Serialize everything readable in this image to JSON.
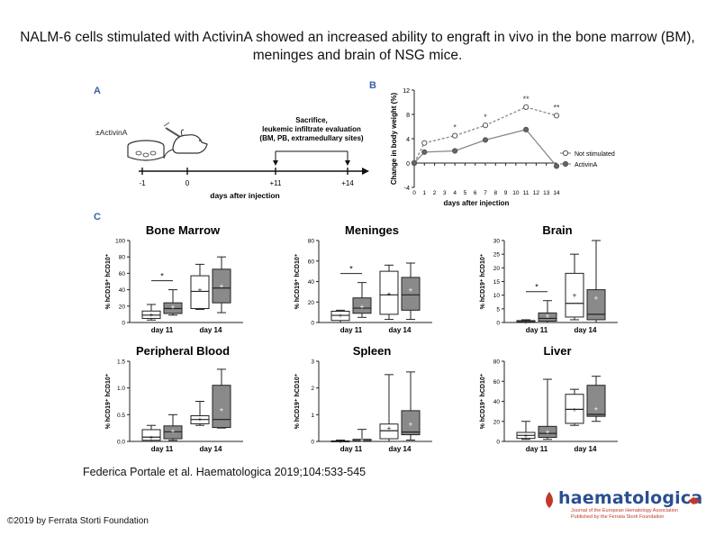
{
  "title": "NALM-6 cells stimulated with ActivinA showed an increased ability to engraft in vivo in the bone marrow (BM), meninges and brain of NSG mice.",
  "citation": "Federica Portale et al. Haematologica 2019;104:533-545",
  "copyright": "©2019 by Ferrata Storti Foundation",
  "logo": {
    "name": "haematologica",
    "subtitle_line1": "Journal of the European Hematology Association",
    "subtitle_line2": "Published by the Ferrata Storti Foundation"
  },
  "panel_a": {
    "label": "A",
    "treatment": "±ActivinA",
    "event": "Sacrifice, leukemic infiltrate evaluation (BM, PB, extramedullary sites)",
    "ticks": [
      "-1",
      "0",
      "+11",
      "+14"
    ],
    "xlabel": "days after injection"
  },
  "panel_c_label": "C",
  "chart_data": [
    {
      "type": "line",
      "panel": "B",
      "ylabel": "Change in body weight (%)",
      "xlabel": "days after injection",
      "x": [
        0,
        1,
        2,
        3,
        4,
        5,
        6,
        7,
        8,
        9,
        10,
        11,
        12,
        13,
        14
      ],
      "xticks": [
        "0",
        "1",
        "2",
        "3",
        "4",
        "5",
        "6",
        "7",
        "8",
        "9",
        "10",
        "11",
        "12",
        "13",
        "14"
      ],
      "ylim": [
        -4,
        12
      ],
      "yticks": [
        -4,
        0,
        4,
        8,
        12
      ],
      "series": [
        {
          "name": "Not stimulated",
          "x": [
            0,
            1,
            4,
            7,
            11,
            14
          ],
          "values": [
            0,
            3.3,
            4.5,
            6.2,
            9.2,
            7.8
          ]
        },
        {
          "name": "ActivinA",
          "x": [
            0,
            1,
            4,
            7,
            11,
            14
          ],
          "values": [
            0,
            1.8,
            2.0,
            3.8,
            5.5,
            -0.5
          ]
        }
      ],
      "annotations": [
        {
          "x": 4,
          "text": "*"
        },
        {
          "x": 7,
          "text": "*"
        },
        {
          "x": 11,
          "text": "**"
        },
        {
          "x": 14,
          "text": "**"
        }
      ],
      "legend_position": "right"
    },
    {
      "type": "box",
      "panel": "C",
      "title": "Bone Marrow",
      "ylabel": "% hCD19⁺ hCD10⁺",
      "ylim": [
        0,
        100
      ],
      "yticks": [
        "0",
        "20",
        "40",
        "60",
        "80",
        "100"
      ],
      "categories": [
        "day 11",
        "day 14"
      ],
      "boxes": [
        {
          "group": "day 11",
          "fill": "white",
          "min": 3,
          "q1": 5,
          "median": 9,
          "q3": 14,
          "max": 22,
          "mean": 10
        },
        {
          "group": "day 11",
          "fill": "gray",
          "min": 9,
          "q1": 11,
          "median": 17,
          "q3": 24,
          "max": 40,
          "mean": 19
        },
        {
          "group": "day 14",
          "fill": "white",
          "min": 16,
          "q1": 17,
          "median": 38,
          "q3": 57,
          "max": 71,
          "mean": 40
        },
        {
          "group": "day 14",
          "fill": "gray",
          "min": 12,
          "q1": 24,
          "median": 42,
          "q3": 65,
          "max": 80,
          "mean": 45
        }
      ],
      "significance": "*"
    },
    {
      "type": "box",
      "panel": "C",
      "title": "Meninges",
      "ylabel": "% hCD19⁺ hCD10⁺",
      "ylim": [
        0,
        80
      ],
      "yticks": [
        "0",
        "20",
        "40",
        "60",
        "80"
      ],
      "categories": [
        "day 11",
        "day 14"
      ],
      "boxes": [
        {
          "group": "day 11",
          "fill": "white",
          "min": 0,
          "q1": 2,
          "median": 7,
          "q3": 11,
          "max": 12,
          "mean": 7
        },
        {
          "group": "day 11",
          "fill": "gray",
          "min": 5,
          "q1": 9,
          "median": 14,
          "q3": 24,
          "max": 39,
          "mean": 16
        },
        {
          "group": "day 14",
          "fill": "white",
          "min": 3,
          "q1": 8,
          "median": 27,
          "q3": 50,
          "max": 56,
          "mean": 28
        },
        {
          "group": "day 14",
          "fill": "gray",
          "min": 3,
          "q1": 12,
          "median": 27,
          "q3": 44,
          "max": 58,
          "mean": 32
        }
      ],
      "significance": "*"
    },
    {
      "type": "box",
      "panel": "C",
      "title": "Brain",
      "ylabel": "% hCD19⁺ hCD10⁺",
      "ylim": [
        0,
        30
      ],
      "yticks": [
        "0",
        "5",
        "10",
        "15",
        "20",
        "25",
        "30"
      ],
      "categories": [
        "day 11",
        "day 14"
      ],
      "boxes": [
        {
          "group": "day 11",
          "fill": "white",
          "min": 0,
          "q1": 0,
          "median": 0.3,
          "q3": 0.7,
          "max": 1,
          "mean": 0.3
        },
        {
          "group": "day 11",
          "fill": "gray",
          "min": 0,
          "q1": 0.5,
          "median": 1.5,
          "q3": 3.5,
          "max": 8,
          "mean": 2.5
        },
        {
          "group": "day 14",
          "fill": "white",
          "min": 1,
          "q1": 2,
          "median": 7,
          "q3": 18,
          "max": 25,
          "mean": 10
        },
        {
          "group": "day 14",
          "fill": "gray",
          "min": 0,
          "q1": 1,
          "median": 3,
          "q3": 12,
          "max": 30,
          "mean": 9
        }
      ],
      "significance": "*"
    },
    {
      "type": "box",
      "panel": "C",
      "title": "Peripheral Blood",
      "ylabel": "% hCD19⁺ hCD10⁺",
      "ylim": [
        0,
        1.5
      ],
      "yticks": [
        "0.0",
        "0.5",
        "1.0",
        "1.5"
      ],
      "categories": [
        "day 11",
        "day 14"
      ],
      "boxes": [
        {
          "group": "day 11",
          "fill": "white",
          "min": 0.0,
          "q1": 0.02,
          "median": 0.08,
          "q3": 0.22,
          "max": 0.3,
          "mean": 0.08
        },
        {
          "group": "day 11",
          "fill": "gray",
          "min": 0.02,
          "q1": 0.05,
          "median": 0.18,
          "q3": 0.29,
          "max": 0.5,
          "mean": 0.2
        },
        {
          "group": "day 14",
          "fill": "white",
          "min": 0.3,
          "q1": 0.33,
          "median": 0.41,
          "q3": 0.48,
          "max": 0.75,
          "mean": 0.42
        },
        {
          "group": "day 14",
          "fill": "gray",
          "min": 0.25,
          "q1": 0.26,
          "median": 0.41,
          "q3": 1.05,
          "max": 1.35,
          "mean": 0.6
        }
      ]
    },
    {
      "type": "box",
      "panel": "C",
      "title": "Spleen",
      "ylabel": "% hCD19⁺ hCD10⁺",
      "ylim": [
        0,
        3
      ],
      "yticks": [
        "0",
        "1",
        "2",
        "3"
      ],
      "categories": [
        "day 11",
        "day 14"
      ],
      "boxes": [
        {
          "group": "day 11",
          "fill": "white",
          "min": 0,
          "q1": 0,
          "median": 0,
          "q3": 0.02,
          "max": 0.05,
          "mean": 0.01
        },
        {
          "group": "day 11",
          "fill": "gray",
          "min": 0,
          "q1": 0,
          "median": 0.02,
          "q3": 0.08,
          "max": 0.45,
          "mean": 0.05
        },
        {
          "group": "day 14",
          "fill": "white",
          "min": 0,
          "q1": 0.1,
          "median": 0.4,
          "q3": 0.65,
          "max": 2.5,
          "mean": 0.5
        },
        {
          "group": "day 14",
          "fill": "gray",
          "min": 0.05,
          "q1": 0.25,
          "median": 0.35,
          "q3": 1.15,
          "max": 2.6,
          "mean": 0.65
        }
      ]
    },
    {
      "type": "box",
      "panel": "C",
      "title": "Liver",
      "ylabel": "% hCD19⁺ hCD10⁺",
      "ylim": [
        0,
        80
      ],
      "yticks": [
        "0",
        "20",
        "40",
        "60",
        "80"
      ],
      "categories": [
        "day 11",
        "day 14"
      ],
      "boxes": [
        {
          "group": "day 11",
          "fill": "white",
          "min": 2,
          "q1": 3,
          "median": 6,
          "q3": 9,
          "max": 20,
          "mean": 6
        },
        {
          "group": "day 11",
          "fill": "gray",
          "min": 2,
          "q1": 4,
          "median": 8,
          "q3": 15,
          "max": 62,
          "mean": 10
        },
        {
          "group": "day 14",
          "fill": "white",
          "min": 16,
          "q1": 18,
          "median": 32,
          "q3": 47,
          "max": 52,
          "mean": 32
        },
        {
          "group": "day 14",
          "fill": "gray",
          "min": 20,
          "q1": 25,
          "median": 27,
          "q3": 56,
          "max": 65,
          "mean": 33
        }
      ]
    }
  ]
}
